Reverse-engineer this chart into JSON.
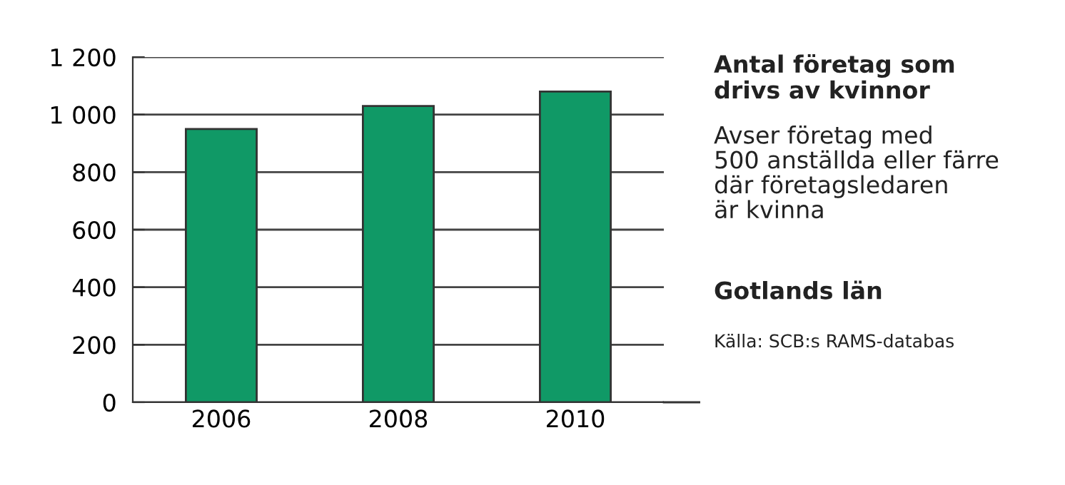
{
  "chart_data": {
    "type": "bar",
    "title": "Antal företag som\ndrivs av kvinnor",
    "subtitle": "Avser företag med\n500 anställda eller färre\ndär företagsledaren\när kvinna",
    "annotations": [
      "Gotlands län",
      "Källa: SCB:s RAMS-databas"
    ],
    "categories": [
      "2006",
      "2008",
      "2010"
    ],
    "values": [
      950,
      1030,
      1080
    ],
    "color": "#109966",
    "ylim": [
      0,
      1200
    ],
    "yticks": [
      0,
      200,
      400,
      600,
      800,
      {
        "value": 1000,
        "label": "1 000"
      },
      {
        "value": 1200,
        "label": "1 200"
      }
    ],
    "grid": "y",
    "legend": false
  }
}
